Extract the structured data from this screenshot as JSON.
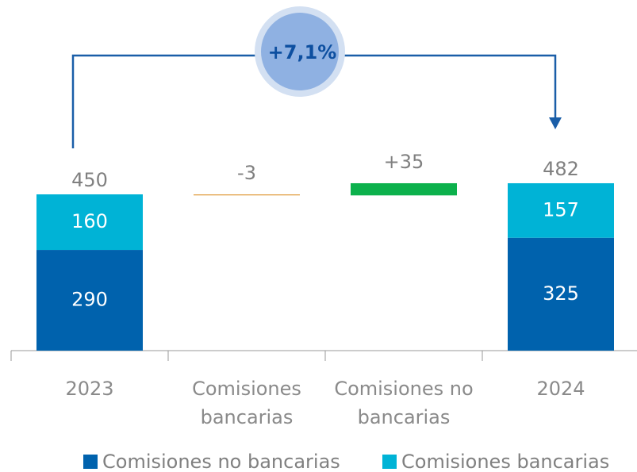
{
  "chart_data": {
    "type": "waterfall",
    "annotation": "+7,1%",
    "categories": [
      "2023",
      "Comisiones bancarias",
      "Comisiones no bancarias",
      "2024"
    ],
    "series": [
      {
        "name": "Comisiones no bancarias",
        "color": "#0062ad",
        "values": [
          290,
          null,
          null,
          325
        ]
      },
      {
        "name": "Comisiones bancarias",
        "color": "#00b3d6",
        "values": [
          160,
          null,
          null,
          157
        ]
      }
    ],
    "totals": [
      450,
      null,
      null,
      482
    ],
    "changes": [
      null,
      -3,
      35,
      null
    ],
    "change_labels": [
      null,
      "-3",
      "+35",
      null
    ],
    "change_colors": [
      null,
      "#e2a24a",
      "#0cb14c",
      null
    ]
  }
}
